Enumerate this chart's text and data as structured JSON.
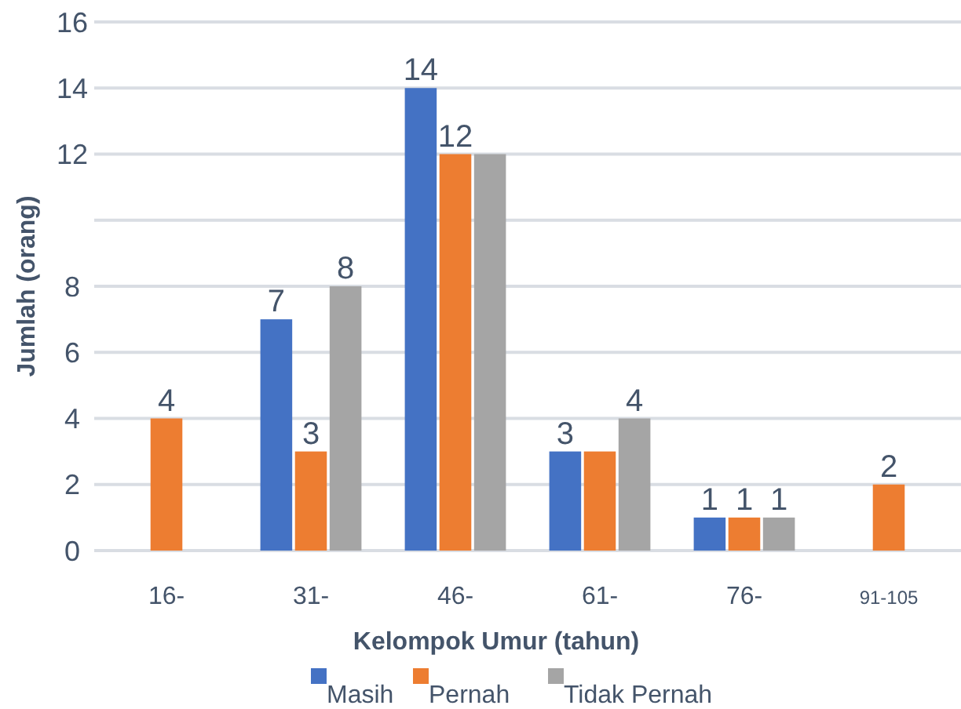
{
  "chart_data": {
    "type": "bar",
    "xlabel": "Kelompok Umur (tahun)",
    "ylabel": "Jumlah (orang)",
    "categories": [
      "16-",
      "31-",
      "46-",
      "61-",
      "76-",
      "91-105"
    ],
    "series": [
      {
        "name": "Masih",
        "color": "#4472c4",
        "values": [
          null,
          7,
          14,
          3,
          1,
          null
        ],
        "value_labels": [
          null,
          "7",
          "14",
          "3",
          "1",
          null
        ]
      },
      {
        "name": "Pernah",
        "color": "#ed7d31",
        "values": [
          4,
          3,
          12,
          3,
          1,
          2
        ],
        "value_labels": [
          "4",
          "3",
          "12",
          null,
          "1",
          "2"
        ]
      },
      {
        "name": "Tidak Pernah",
        "color": "#a5a5a5",
        "values": [
          null,
          8,
          12,
          4,
          1,
          null
        ],
        "value_labels": [
          null,
          "8",
          null,
          "4",
          "1",
          null
        ]
      }
    ],
    "ylim": [
      0,
      16
    ],
    "yticks": [
      0,
      2,
      4,
      6,
      8,
      {
        "value": 10,
        "label": null
      },
      12,
      14,
      16
    ],
    "grid": "y",
    "legend": "bottom"
  }
}
